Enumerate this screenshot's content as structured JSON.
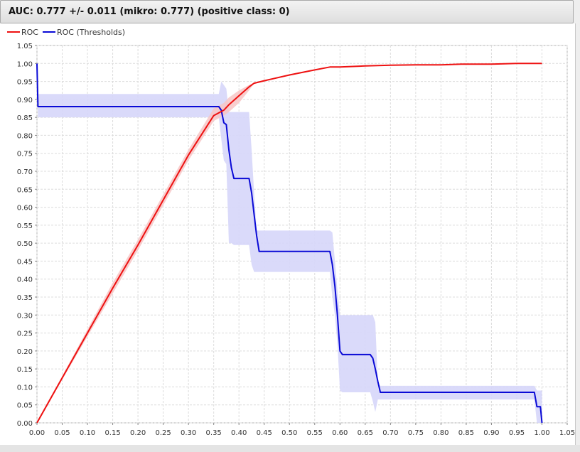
{
  "header": {
    "title": "AUC: 0.777 +/- 0.011 (mikro: 0.777) (positive class: 0)"
  },
  "colors": {
    "roc": "#ee1111",
    "roc_band": "#f7c6c6",
    "thresholds": "#0a0ad6",
    "thresholds_band": "#d6d6fa",
    "grid": "#dcdcdc"
  },
  "chart_data": {
    "type": "line",
    "title": "",
    "xlabel": "",
    "ylabel": "",
    "xlim": [
      0,
      1.05
    ],
    "ylim": [
      0,
      1.05
    ],
    "grid": true,
    "legend_position": "top-left",
    "x_ticks": [
      "0.00",
      "0.05",
      "0.10",
      "0.15",
      "0.20",
      "0.25",
      "0.30",
      "0.35",
      "0.40",
      "0.45",
      "0.50",
      "0.55",
      "0.60",
      "0.65",
      "0.70",
      "0.75",
      "0.80",
      "0.85",
      "0.90",
      "0.95",
      "1.00",
      "1.05"
    ],
    "y_ticks": [
      "0.00",
      "0.05",
      "0.10",
      "0.15",
      "0.20",
      "0.25",
      "0.30",
      "0.35",
      "0.40",
      "0.45",
      "0.50",
      "0.55",
      "0.60",
      "0.65",
      "0.70",
      "0.75",
      "0.80",
      "0.85",
      "0.90",
      "0.95",
      "1.00",
      "1.05"
    ],
    "series": [
      {
        "name": "ROC",
        "color": "#ee1111",
        "x": [
          0.0,
          0.05,
          0.1,
          0.15,
          0.2,
          0.25,
          0.3,
          0.35,
          0.37,
          0.38,
          0.4,
          0.42,
          0.43,
          0.45,
          0.5,
          0.55,
          0.58,
          0.6,
          0.65,
          0.7,
          0.75,
          0.8,
          0.84,
          0.9,
          0.95,
          1.0
        ],
        "y": [
          0.0,
          0.125,
          0.25,
          0.375,
          0.495,
          0.62,
          0.745,
          0.855,
          0.87,
          0.885,
          0.91,
          0.935,
          0.945,
          0.952,
          0.968,
          0.982,
          0.99,
          0.99,
          0.993,
          0.995,
          0.996,
          0.996,
          0.998,
          0.998,
          1.0,
          1.0
        ],
        "band_upper": [
          0.005,
          0.13,
          0.26,
          0.39,
          0.51,
          0.635,
          0.76,
          0.875,
          0.89,
          0.905,
          0.925,
          0.94,
          0.946,
          0.952,
          0.968,
          0.982,
          0.99,
          0.99,
          0.993,
          0.995,
          0.996,
          0.996,
          0.998,
          0.998,
          1.0,
          1.0
        ],
        "band_lower": [
          0.0,
          0.12,
          0.24,
          0.36,
          0.48,
          0.605,
          0.73,
          0.84,
          0.855,
          0.865,
          0.89,
          0.925,
          0.944,
          0.952,
          0.968,
          0.982,
          0.99,
          0.99,
          0.993,
          0.995,
          0.996,
          0.996,
          0.998,
          0.998,
          1.0,
          1.0
        ]
      },
      {
        "name": "ROC (Thresholds)",
        "color": "#0a0ad6",
        "x": [
          0.0,
          0.002,
          0.36,
          0.365,
          0.37,
          0.375,
          0.38,
          0.385,
          0.39,
          0.42,
          0.425,
          0.43,
          0.435,
          0.44,
          0.58,
          0.585,
          0.59,
          0.595,
          0.6,
          0.605,
          0.66,
          0.665,
          0.67,
          0.675,
          0.68,
          0.985,
          0.99,
          0.997,
          1.0
        ],
        "y": [
          1.0,
          0.88,
          0.88,
          0.87,
          0.835,
          0.83,
          0.76,
          0.71,
          0.68,
          0.68,
          0.64,
          0.58,
          0.52,
          0.477,
          0.477,
          0.44,
          0.38,
          0.3,
          0.2,
          0.19,
          0.19,
          0.18,
          0.15,
          0.115,
          0.085,
          0.085,
          0.045,
          0.045,
          0.0
        ],
        "band_upper": [
          1.0,
          0.915,
          0.915,
          0.95,
          0.94,
          0.93,
          0.865,
          0.865,
          0.865,
          0.865,
          0.76,
          0.64,
          0.535,
          0.535,
          0.535,
          0.53,
          0.45,
          0.37,
          0.3,
          0.3,
          0.3,
          0.3,
          0.28,
          0.11,
          0.103,
          0.103,
          0.09,
          0.09,
          0.09
        ],
        "band_lower": [
          1.0,
          0.85,
          0.85,
          0.79,
          0.73,
          0.72,
          0.5,
          0.5,
          0.495,
          0.495,
          0.44,
          0.42,
          0.42,
          0.42,
          0.42,
          0.35,
          0.3,
          0.22,
          0.09,
          0.085,
          0.085,
          0.06,
          0.03,
          0.065,
          0.065,
          0.065,
          0.0,
          0.0,
          0.0
        ]
      }
    ]
  }
}
